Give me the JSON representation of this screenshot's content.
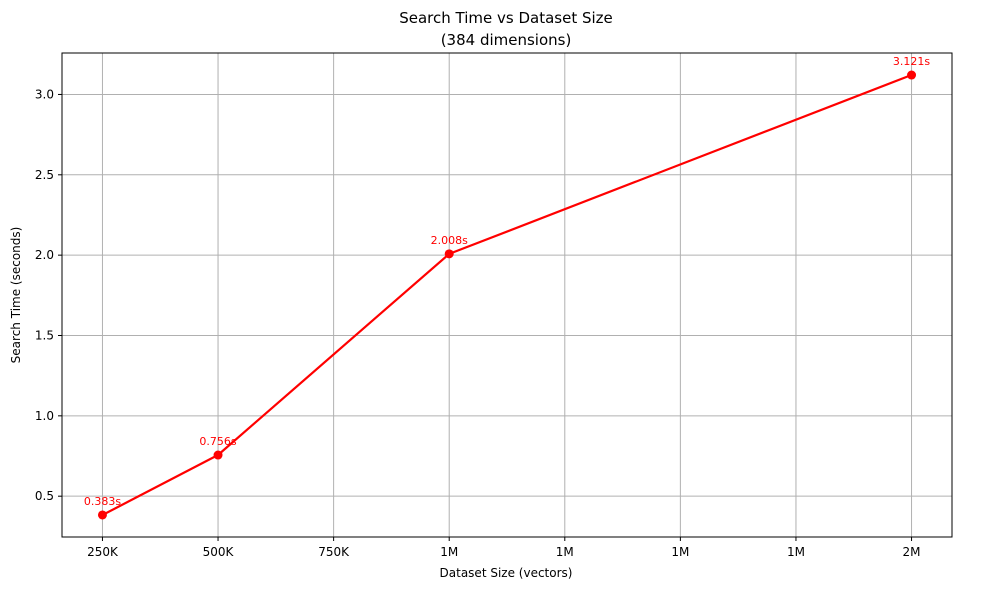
{
  "chart_data": {
    "type": "line",
    "title": "Search Time vs Dataset Size",
    "subtitle": "(384 dimensions)",
    "xlabel": "Dataset Size (vectors)",
    "ylabel": "Search Time (seconds)",
    "x_ticks": [
      {
        "value": 250000,
        "label": "250K"
      },
      {
        "value": 500000,
        "label": "500K"
      },
      {
        "value": 750000,
        "label": "750K"
      },
      {
        "value": 1000000,
        "label": "1M"
      },
      {
        "value": 1250000,
        "label": "1M"
      },
      {
        "value": 1500000,
        "label": "1M"
      },
      {
        "value": 1750000,
        "label": "1M"
      },
      {
        "value": 2000000,
        "label": "2M"
      }
    ],
    "y_ticks": [
      {
        "value": 0.5,
        "label": "0.5"
      },
      {
        "value": 1.0,
        "label": "1.0"
      },
      {
        "value": 1.5,
        "label": "1.5"
      },
      {
        "value": 2.0,
        "label": "2.0"
      },
      {
        "value": 2.5,
        "label": "2.5"
      },
      {
        "value": 3.0,
        "label": "3.0"
      }
    ],
    "xlim": [
      162500,
      2087500
    ],
    "ylim": [
      0.246,
      3.258
    ],
    "grid": true,
    "series": [
      {
        "color": "#ff0000",
        "points": [
          {
            "x": 250000,
            "y": 0.383,
            "label": "0.383s"
          },
          {
            "x": 500000,
            "y": 0.756,
            "label": "0.756s"
          },
          {
            "x": 1000000,
            "y": 2.008,
            "label": "2.008s"
          },
          {
            "x": 2000000,
            "y": 3.121,
            "label": "3.121s"
          }
        ]
      }
    ]
  }
}
